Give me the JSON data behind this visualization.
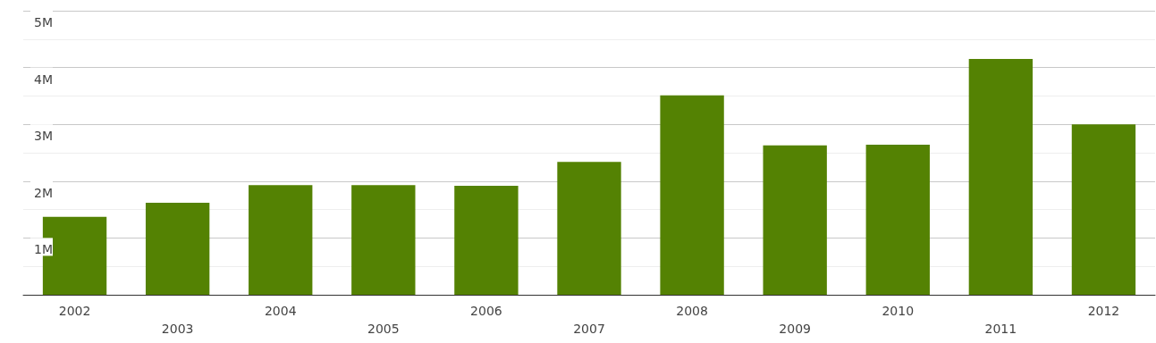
{
  "chart_data": {
    "type": "bar",
    "categories": [
      "2002",
      "2003",
      "2004",
      "2005",
      "2006",
      "2007",
      "2008",
      "2009",
      "2010",
      "2011",
      "2012"
    ],
    "values": [
      1370000,
      1620000,
      1930000,
      1930000,
      1920000,
      2340000,
      3510000,
      2630000,
      2640000,
      4150000,
      3000000
    ],
    "color": "#548203",
    "ylim": [
      0,
      5000000
    ],
    "yticks": [
      {
        "value": 1000000,
        "label": "1M"
      },
      {
        "value": 2000000,
        "label": "2M"
      },
      {
        "value": 3000000,
        "label": "3M"
      },
      {
        "value": 4000000,
        "label": "4M"
      },
      {
        "value": 5000000,
        "label": "5M"
      }
    ],
    "grid": "y"
  }
}
